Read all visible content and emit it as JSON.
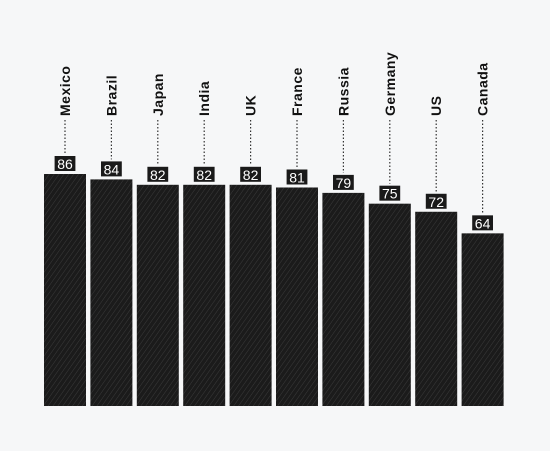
{
  "chart_data": {
    "type": "bar",
    "categories": [
      "Mexico",
      "Brazil",
      "Japan",
      "India",
      "UK",
      "France",
      "Russia",
      "Germany",
      "US",
      "Canada"
    ],
    "values": [
      86,
      84,
      82,
      82,
      82,
      81,
      79,
      75,
      72,
      64
    ],
    "title": "",
    "xlabel": "",
    "ylabel": "",
    "ylim": [
      0,
      86
    ],
    "grid": false,
    "legend": "none",
    "colors": {
      "bar": "#1b1b1b",
      "bar_texture": "#3a3a3a",
      "background": "#f6f7f8"
    }
  }
}
